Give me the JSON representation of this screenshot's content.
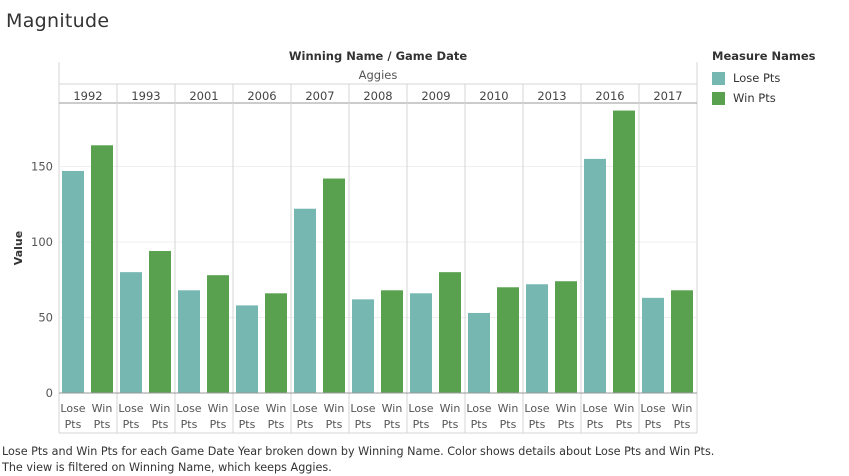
{
  "title": "Magnitude",
  "caption": "Lose Pts and Win Pts for each Game Date Year broken down by Winning Name.  Color shows details about Lose Pts and Win Pts. The view is filtered on Winning Name, which keeps Aggies.",
  "legend": {
    "title": "Measure Names",
    "items": [
      {
        "label": "Lose Pts",
        "color": "#76b7b2"
      },
      {
        "label": "Win Pts",
        "color": "#59a14f"
      }
    ]
  },
  "chart_data": {
    "type": "bar",
    "header_title": "Winning Name  /  Game Date",
    "group_label": "Aggies",
    "ylabel": "Value",
    "yticks": [
      0,
      50,
      100,
      150
    ],
    "ylim": [
      0,
      192
    ],
    "categories": [
      "1992",
      "1993",
      "2001",
      "2006",
      "2007",
      "2008",
      "2009",
      "2010",
      "2013",
      "2016",
      "2017"
    ],
    "bar_labels": [
      "Lose Pts",
      "Win Pts"
    ],
    "series": [
      {
        "name": "Lose Pts",
        "color": "#76b7b2",
        "values": [
          147,
          80,
          68,
          58,
          122,
          62,
          66,
          53,
          72,
          155,
          63
        ]
      },
      {
        "name": "Win Pts",
        "color": "#59a14f",
        "values": [
          164,
          94,
          78,
          66,
          142,
          68,
          80,
          70,
          74,
          187,
          68
        ]
      }
    ]
  }
}
